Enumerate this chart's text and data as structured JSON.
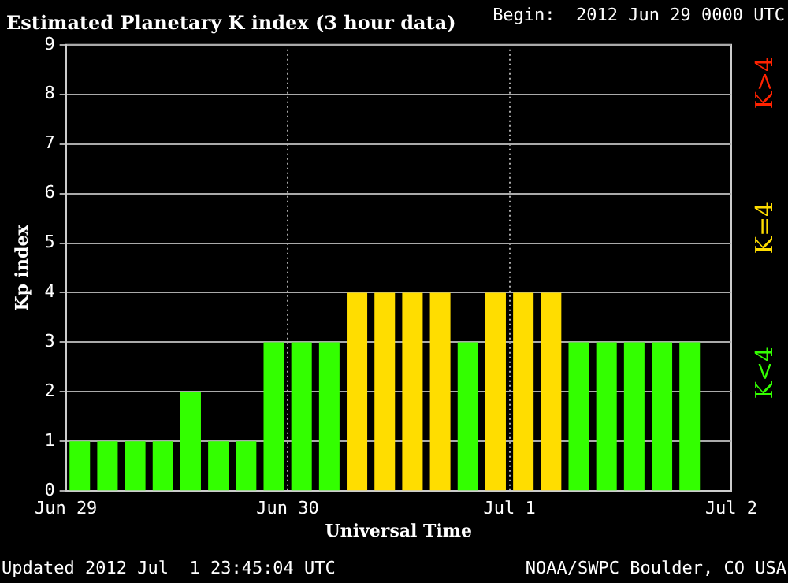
{
  "chart_data": {
    "type": "bar",
    "title": "Estimated Planetary K index (3 hour data)",
    "subtitle": "Begin:  2012 Jun 29 0000 UTC",
    "xlabel": "Universal Time",
    "ylabel": "Kp index",
    "categories": [
      "Jun 29",
      null,
      null,
      null,
      null,
      null,
      null,
      null,
      "Jun 30",
      null,
      null,
      null,
      null,
      null,
      null,
      null,
      "Jul 1",
      null,
      null,
      null,
      null,
      null,
      null,
      null
    ],
    "values": [
      1,
      1,
      1,
      1,
      2,
      1,
      1,
      3,
      3,
      3,
      4,
      4,
      4,
      4,
      3,
      4,
      4,
      4,
      3,
      3,
      3,
      3,
      3,
      null
    ],
    "colors": [
      "#33ff00",
      "#33ff00",
      "#33ff00",
      "#33ff00",
      "#33ff00",
      "#33ff00",
      "#33ff00",
      "#33ff00",
      "#33ff00",
      "#33ff00",
      "#ffdd00",
      "#ffdd00",
      "#ffdd00",
      "#ffdd00",
      "#33ff00",
      "#ffdd00",
      "#ffdd00",
      "#ffdd00",
      "#33ff00",
      "#33ff00",
      "#33ff00",
      "#33ff00",
      "#33ff00",
      "#33ff00"
    ],
    "ylim": [
      0,
      9
    ],
    "yticks": [
      0,
      1,
      2,
      3,
      4,
      5,
      6,
      7,
      8,
      9
    ],
    "grid": true,
    "annotations": [
      "Jul 2",
      "K<4",
      "K=4",
      "K>4",
      "Updated 2012 Jul  1 23:45:04 UTC",
      "NOAA/SWPC Boulder, CO USA"
    ]
  }
}
